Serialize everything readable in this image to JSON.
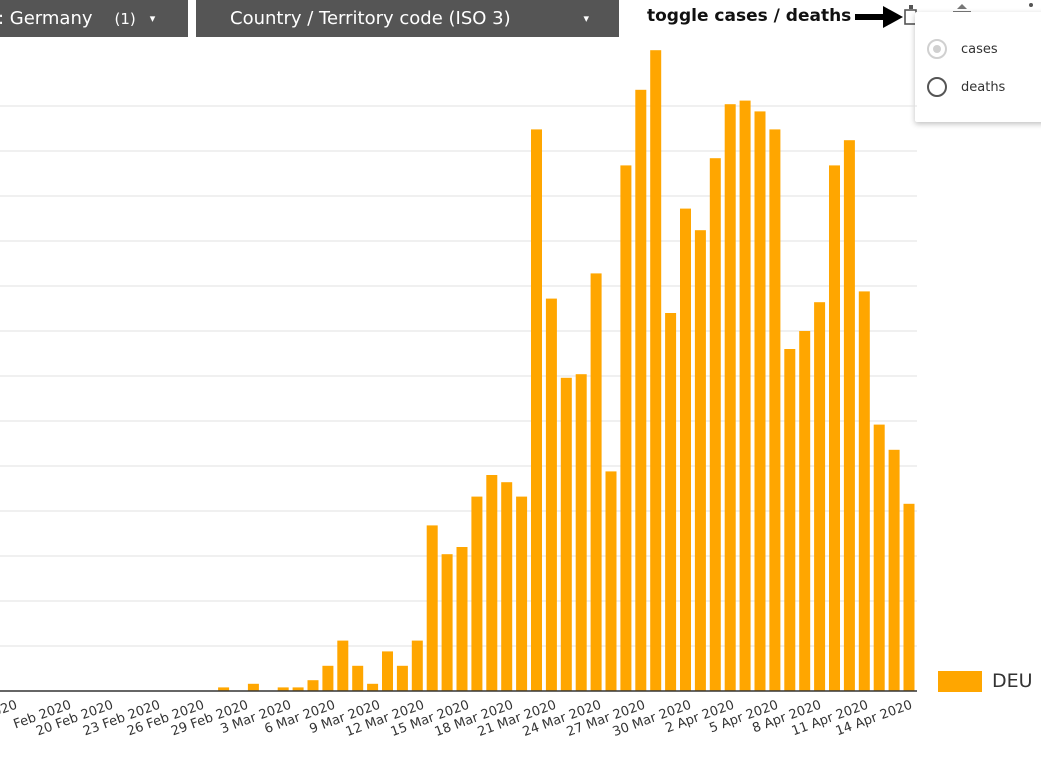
{
  "controls": {
    "country_filter": {
      "label": ": Germany",
      "count": "(1)",
      "caret": "▾"
    },
    "code_filter": {
      "label": "Country / Territory code (ISO 3)",
      "caret": "▾"
    },
    "toggle_label": "toggle cases / deaths",
    "toggle_options": [
      {
        "label": "cases",
        "selected": true
      },
      {
        "label": "deaths",
        "selected": false
      }
    ]
  },
  "chart_data": {
    "type": "bar",
    "bar_color": "#ffa600",
    "grid": true,
    "legend": "right",
    "x_tick_labels": [
      "020",
      "Feb 2020",
      "20 Feb 2020",
      "23 Feb 2020",
      "26 Feb 2020",
      "29 Feb 2020",
      "3 Mar 2020",
      "6 Mar 2020",
      "9 Mar 2020",
      "12 Mar 2020",
      "15 Mar 2020",
      "18 Mar 2020",
      "21 Mar 2020",
      "24 Mar 2020",
      "27 Mar 2020",
      "30 Mar 2020",
      "2 Apr 2020",
      "5 Apr 2020",
      "8 Apr 2020",
      "11 Apr 2020",
      "14 Apr 2020"
    ],
    "series": [
      {
        "name": "DEU",
        "values": [
          0,
          0,
          0,
          0,
          0,
          0,
          0,
          0,
          0,
          0,
          0,
          0,
          0,
          0,
          0,
          0,
          0,
          1,
          0,
          2,
          0,
          1,
          1,
          3,
          7,
          14,
          7,
          2,
          11,
          7,
          14,
          46,
          38,
          40,
          54,
          60,
          58,
          54,
          156,
          109,
          87,
          88,
          116,
          61,
          146,
          167,
          178,
          105,
          134,
          128,
          148,
          163,
          164,
          161,
          156,
          95,
          100,
          108,
          146,
          153,
          111,
          74,
          67,
          52
        ]
      }
    ]
  }
}
